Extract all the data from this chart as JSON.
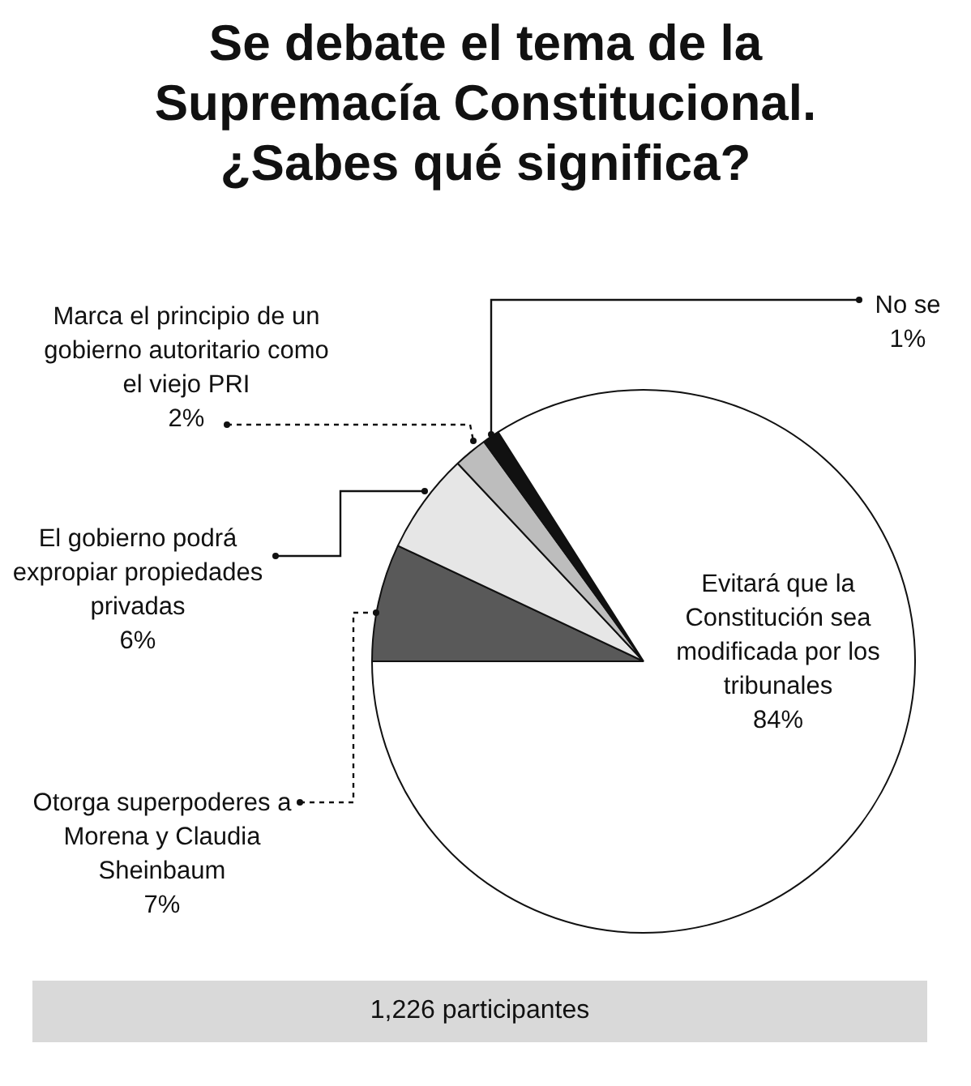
{
  "chart_data": {
    "type": "pie",
    "title": "Se debate el tema de la Supremacía Constitucional. ¿Sabes qué significa?",
    "categories": [
      "Otorga superpoderes a Morena y Claudia Sheinbaum",
      "El gobierno podrá expropiar propiedades privadas",
      "Marca el principio de un gobierno autoritario como el viejo PRI",
      "No se",
      "Evitará que la Constitución sea modificada por los tribunales"
    ],
    "values": [
      7,
      6,
      2,
      1,
      84
    ],
    "value_labels": [
      "7%",
      "6%",
      "2%",
      "1%",
      "84%"
    ],
    "colors": [
      "#595959",
      "#e6e6e6",
      "#bdbdbd",
      "#111111",
      "#ffffff"
    ],
    "annotations": [
      "1,226 participantes"
    ]
  }
}
